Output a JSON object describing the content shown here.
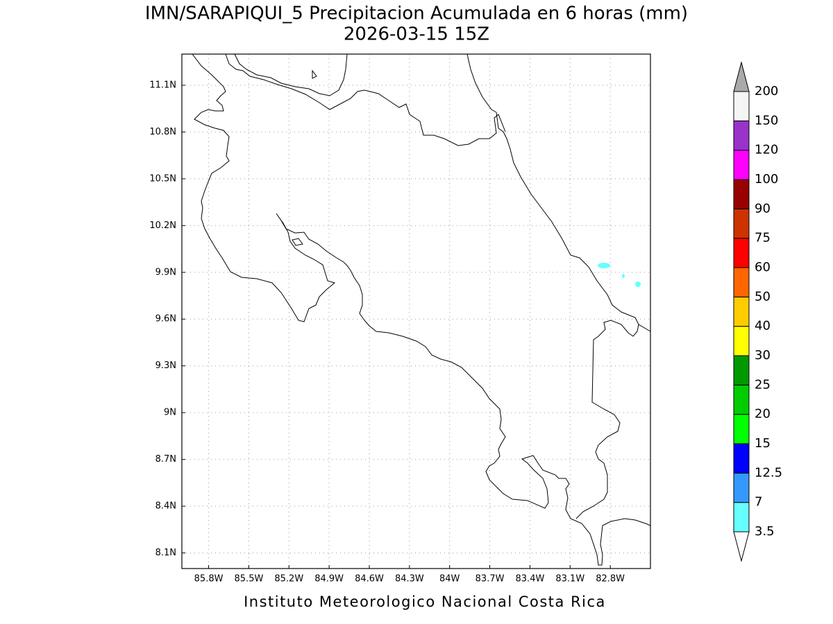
{
  "chart_data": {
    "type": "map",
    "title": "IMN/SARAPIQUI_5 Precipitacion Acumulada en 6 horas (mm)",
    "subtitle": "2026-03-15 15Z",
    "footer": "Instituto Meteorologico Nacional Costa Rica",
    "xlim": [
      -86.0,
      -82.5
    ],
    "ylim": [
      8.0,
      11.3
    ],
    "grid": true,
    "xticks": [
      {
        "value": -85.8,
        "label": "85.8W"
      },
      {
        "value": -85.5,
        "label": "85.5W"
      },
      {
        "value": -85.2,
        "label": "85.2W"
      },
      {
        "value": -84.9,
        "label": "84.9W"
      },
      {
        "value": -84.6,
        "label": "84.6W"
      },
      {
        "value": -84.3,
        "label": "84.3W"
      },
      {
        "value": -84,
        "label": "84W"
      },
      {
        "value": -83.7,
        "label": "83.7W"
      },
      {
        "value": -83.4,
        "label": "83.4W"
      },
      {
        "value": -83.1,
        "label": "83.1W"
      },
      {
        "value": -82.8,
        "label": "82.8W"
      }
    ],
    "yticks": [
      {
        "value": 8.1,
        "label": "8.1N"
      },
      {
        "value": 8.4,
        "label": "8.4N"
      },
      {
        "value": 8.7,
        "label": "8.7N"
      },
      {
        "value": 9,
        "label": "9N"
      },
      {
        "value": 9.3,
        "label": "9.3N"
      },
      {
        "value": 9.6,
        "label": "9.6N"
      },
      {
        "value": 9.9,
        "label": "9.9N"
      },
      {
        "value": 10.2,
        "label": "10.2N"
      },
      {
        "value": 10.5,
        "label": "10.5N"
      },
      {
        "value": 10.8,
        "label": "10.8N"
      },
      {
        "value": 11.1,
        "label": "11.1N"
      }
    ],
    "colorbar": {
      "levels": [
        3.5,
        7,
        12.5,
        15,
        20,
        25,
        30,
        40,
        50,
        60,
        75,
        90,
        100,
        120,
        150,
        200
      ],
      "colors": [
        "#ffffff",
        "#66ffff",
        "#3399ff",
        "#0000ff",
        "#00ff00",
        "#00cc00",
        "#009900",
        "#ffff00",
        "#ffcc00",
        "#ff6600",
        "#ff0000",
        "#cc3300",
        "#990000",
        "#ff00ff",
        "#9933cc",
        "#f5f5f5",
        "#aaaaaa"
      ]
    }
  }
}
